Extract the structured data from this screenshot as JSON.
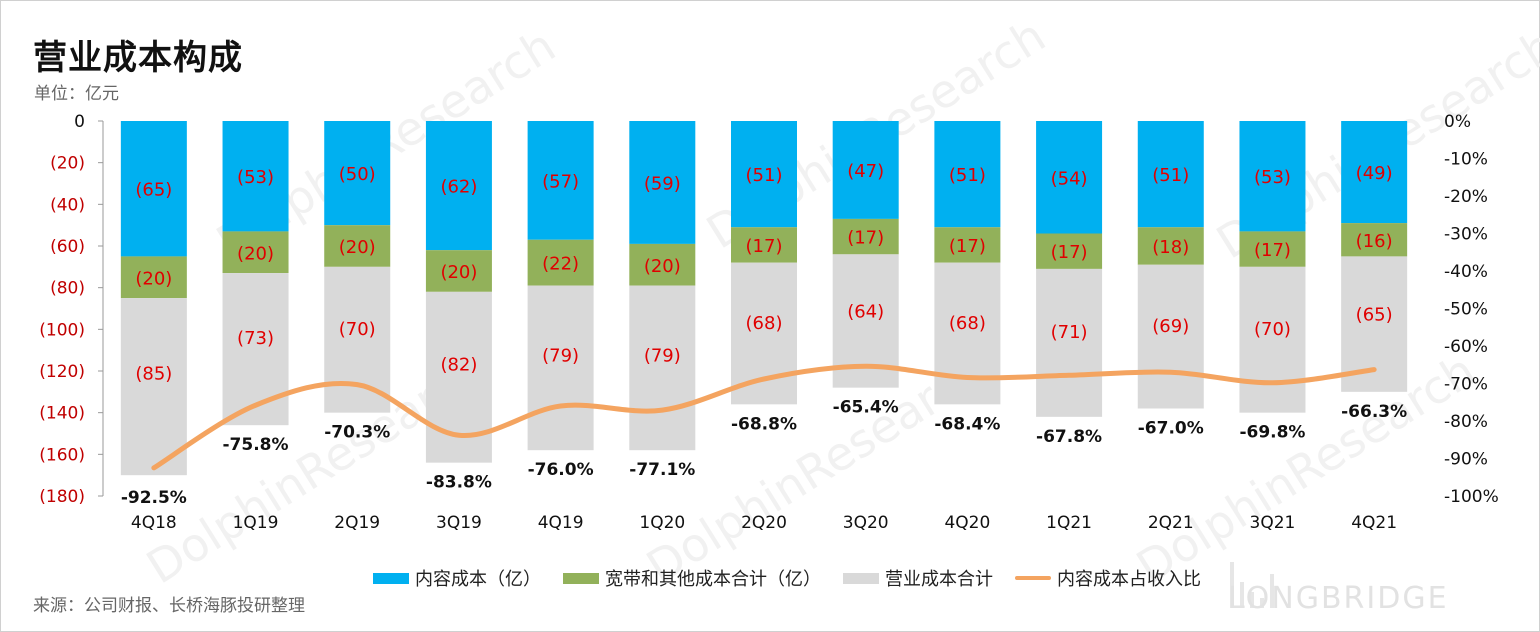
{
  "title": "营业成本构成",
  "subtitle": "单位：亿元",
  "source": "来源：公司财报、长桥海豚投研整理",
  "watermark": {
    "brand": "LONGBRIDGE",
    "diagonal": "DolphinResearch"
  },
  "colors": {
    "content": "#00b0f0",
    "broadband": "#92b15a",
    "total": "#d9d9d9",
    "ratio": "#f4a460",
    "neg_axis": "#c00000"
  },
  "chart_data": {
    "type": "bar",
    "stacked": true,
    "categories": [
      "4Q18",
      "1Q19",
      "2Q19",
      "3Q19",
      "4Q19",
      "1Q20",
      "2Q20",
      "3Q20",
      "4Q20",
      "1Q21",
      "2Q21",
      "3Q21",
      "4Q21"
    ],
    "series": [
      {
        "name": "内容成本（亿）",
        "color": "#00b0f0",
        "values": [
          -65,
          -53,
          -50,
          -62,
          -57,
          -59,
          -51,
          -47,
          -51,
          -54,
          -51,
          -53,
          -49
        ],
        "labels": [
          "(65)",
          "(53)",
          "(50)",
          "(62)",
          "(57)",
          "(59)",
          "(51)",
          "(47)",
          "(51)",
          "(54)",
          "(51)",
          "(53)",
          "(49)"
        ]
      },
      {
        "name": "宽带和其他成本合计（亿）",
        "color": "#92b15a",
        "values": [
          -20,
          -20,
          -20,
          -20,
          -22,
          -20,
          -17,
          -17,
          -17,
          -17,
          -18,
          -17,
          -16
        ],
        "labels": [
          "(20)",
          "(20)",
          "(20)",
          "(20)",
          "(22)",
          "(20)",
          "(17)",
          "(17)",
          "(17)",
          "(17)",
          "(18)",
          "(17)",
          "(16)"
        ]
      },
      {
        "name": "营业成本合计",
        "color": "#d9d9d9",
        "values": [
          -85,
          -73,
          -70,
          -82,
          -79,
          -79,
          -68,
          -64,
          -68,
          -71,
          -69,
          -70,
          -65
        ],
        "labels": [
          "(85)",
          "(73)",
          "(70)",
          "(82)",
          "(79)",
          "(79)",
          "(68)",
          "(64)",
          "(68)",
          "(71)",
          "(69)",
          "(70)",
          "(65)"
        ]
      },
      {
        "name": "内容成本占收入比",
        "type": "line",
        "axis": "right",
        "color": "#f4a460",
        "values": [
          -92.5,
          -75.8,
          -70.3,
          -83.8,
          -76.0,
          -77.1,
          -68.8,
          -65.4,
          -68.4,
          -67.8,
          -67.0,
          -69.8,
          -66.3
        ],
        "labels": [
          "-92.5%",
          "-75.8%",
          "-70.3%",
          "-83.8%",
          "-76.0%",
          "-77.1%",
          "-68.8%",
          "-65.4%",
          "-68.4%",
          "-67.8%",
          "-67.0%",
          "-69.8%",
          "-66.3%"
        ]
      }
    ],
    "y_left": {
      "ylim": [
        -180,
        0
      ],
      "ticks": [
        "0",
        "(20)",
        "(40)",
        "(60)",
        "(80)",
        "(100)",
        "(120)",
        "(140)",
        "(160)",
        "(180)"
      ]
    },
    "y_right": {
      "ylim": [
        -100,
        0
      ],
      "ticks": [
        "0%",
        "-10%",
        "-20%",
        "-30%",
        "-40%",
        "-50%",
        "-60%",
        "-70%",
        "-80%",
        "-90%",
        "-100%"
      ]
    },
    "legend_position": "bottom"
  }
}
